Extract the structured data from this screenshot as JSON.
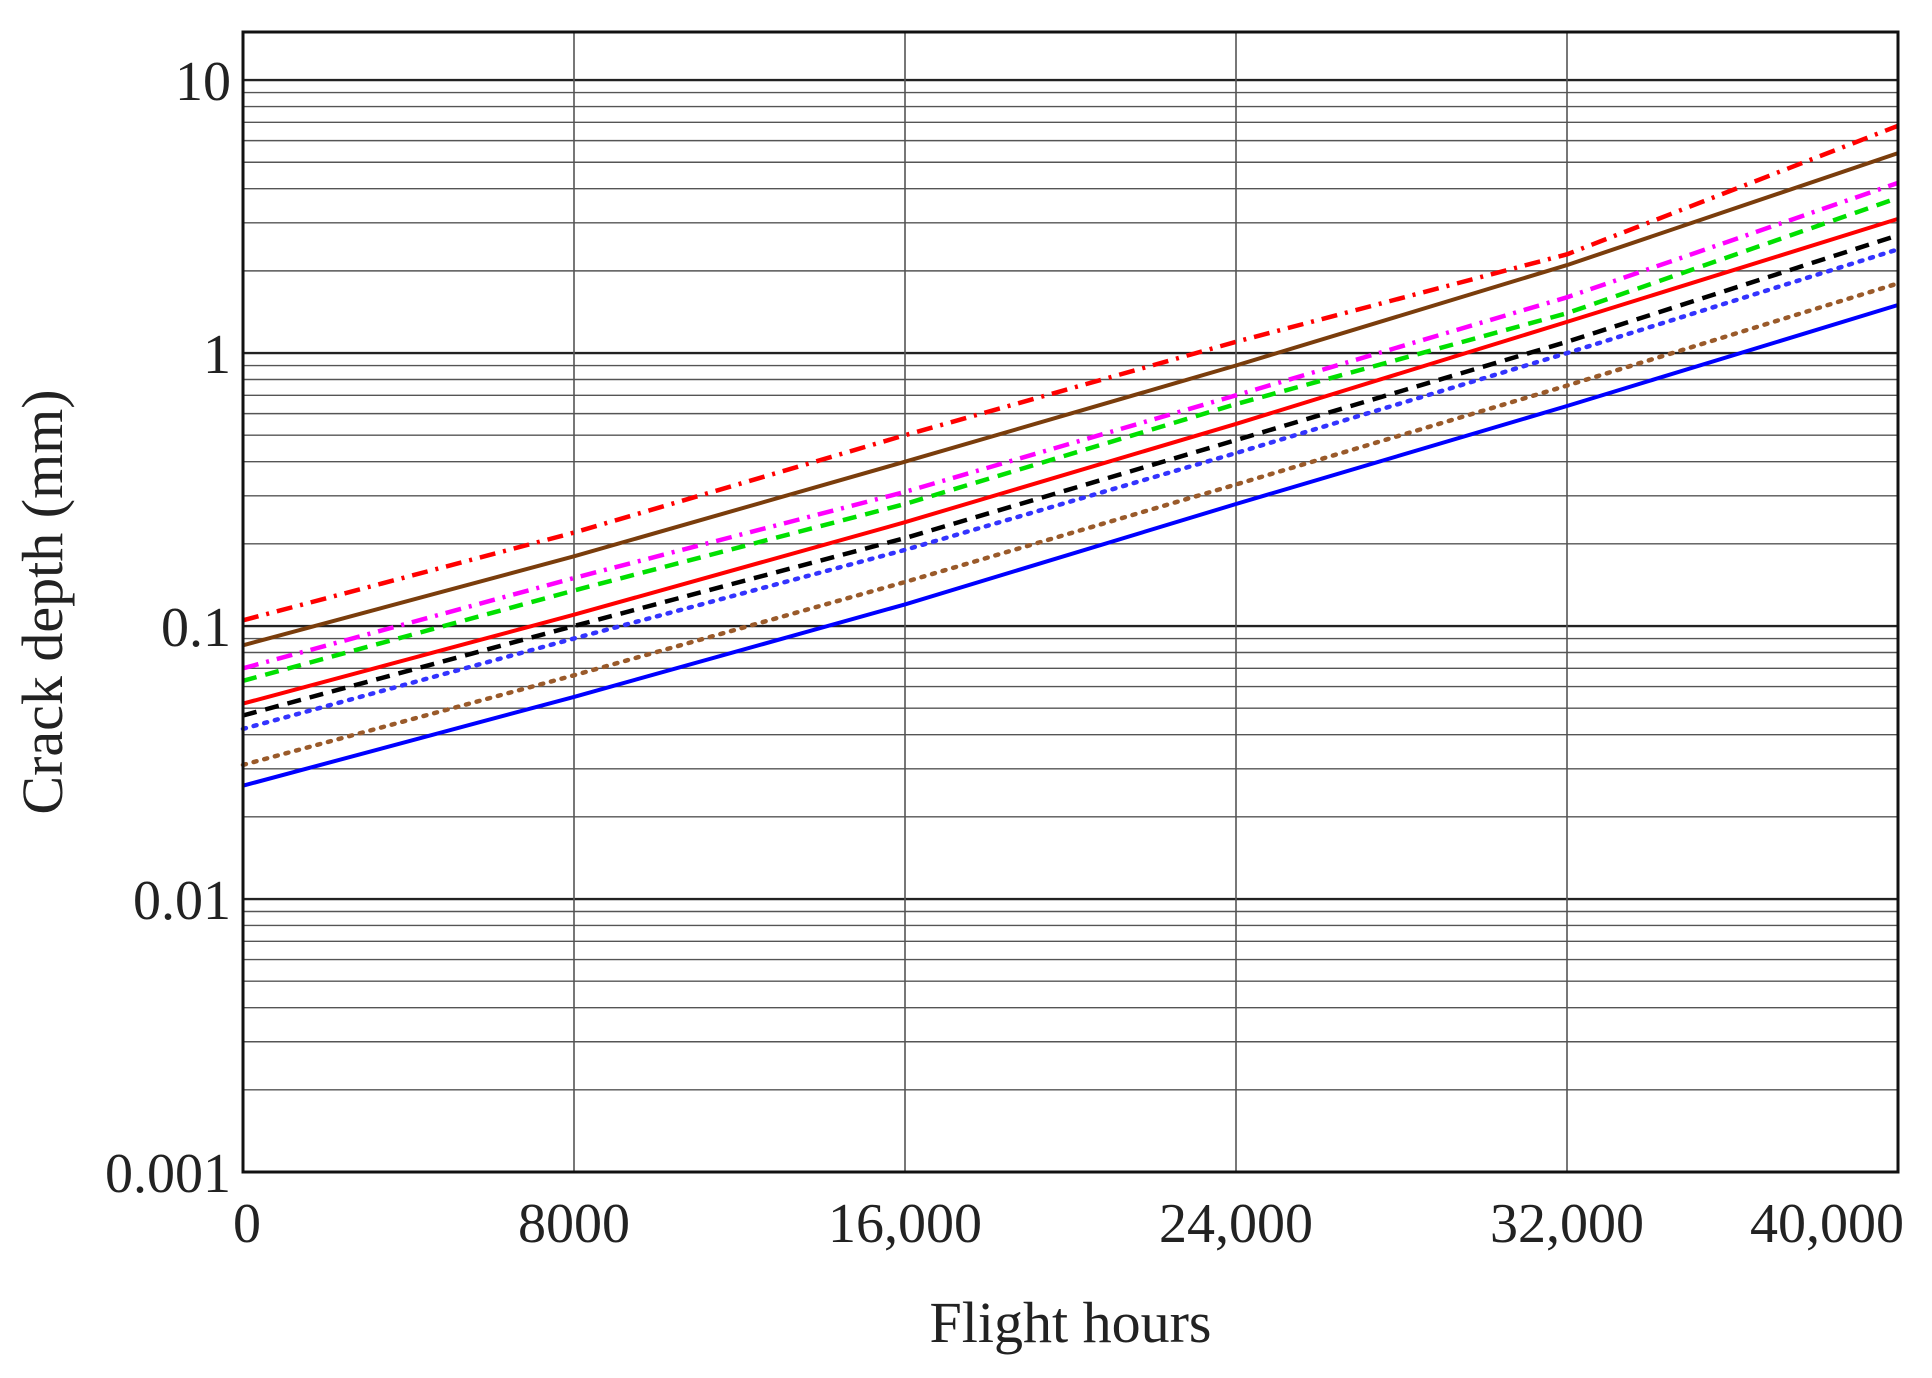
{
  "chart_data": {
    "type": "line",
    "title": "",
    "xlabel": "Flight hours",
    "ylabel": "Crack depth (mm)",
    "xlim": [
      0,
      40000
    ],
    "ylim": [
      0.001,
      15
    ],
    "yscale": "log",
    "grid": true,
    "x_ticks": [
      {
        "value": 0,
        "label": "0"
      },
      {
        "value": 8000,
        "label": "8000"
      },
      {
        "value": 16000,
        "label": "16,000"
      },
      {
        "value": 24000,
        "label": "24,000"
      },
      {
        "value": 32000,
        "label": "32,000"
      },
      {
        "value": 40000,
        "label": "40,000"
      }
    ],
    "y_ticks": [
      {
        "value": 0.001,
        "label": "0.001"
      },
      {
        "value": 0.01,
        "label": "0.01"
      },
      {
        "value": 0.1,
        "label": "0.1"
      },
      {
        "value": 1,
        "label": "1"
      },
      {
        "value": 10,
        "label": "10"
      }
    ],
    "series": [
      {
        "color": "#ff0000",
        "style": "dashdot",
        "x": [
          0,
          8000,
          16000,
          24000,
          32000,
          40000
        ],
        "y": [
          0.105,
          0.22,
          0.5,
          1.1,
          2.3,
          6.8
        ]
      },
      {
        "color": "#7a3d0c",
        "style": "solid",
        "x": [
          0,
          8000,
          16000,
          24000,
          32000,
          40000
        ],
        "y": [
          0.085,
          0.18,
          0.4,
          0.9,
          2.1,
          5.4
        ]
      },
      {
        "color": "#ff00ff",
        "style": "dashdot",
        "x": [
          0,
          8000,
          16000,
          24000,
          32000,
          40000
        ],
        "y": [
          0.07,
          0.15,
          0.31,
          0.7,
          1.6,
          4.2
        ]
      },
      {
        "color": "#00e000",
        "style": "dashed",
        "x": [
          0,
          8000,
          16000,
          24000,
          32000,
          40000
        ],
        "y": [
          0.063,
          0.135,
          0.28,
          0.65,
          1.4,
          3.7
        ]
      },
      {
        "color": "#ff0000",
        "style": "solid",
        "x": [
          0,
          8000,
          16000,
          24000,
          32000,
          40000
        ],
        "y": [
          0.052,
          0.11,
          0.24,
          0.55,
          1.3,
          3.1
        ]
      },
      {
        "color": "#000000",
        "style": "dashed",
        "x": [
          0,
          8000,
          16000,
          24000,
          32000,
          40000
        ],
        "y": [
          0.047,
          0.1,
          0.21,
          0.48,
          1.1,
          2.7
        ]
      },
      {
        "color": "#3333ff",
        "style": "dotted",
        "x": [
          0,
          8000,
          16000,
          24000,
          32000,
          40000
        ],
        "y": [
          0.042,
          0.09,
          0.19,
          0.43,
          1.0,
          2.4
        ]
      },
      {
        "color": "#9a5a2a",
        "style": "dotted",
        "x": [
          0,
          8000,
          16000,
          24000,
          32000,
          40000
        ],
        "y": [
          0.031,
          0.066,
          0.145,
          0.33,
          0.76,
          1.8
        ]
      },
      {
        "color": "#0000ff",
        "style": "solid",
        "x": [
          0,
          8000,
          16000,
          24000,
          32000,
          40000
        ],
        "y": [
          0.026,
          0.055,
          0.12,
          0.28,
          0.64,
          1.5
        ]
      }
    ]
  }
}
